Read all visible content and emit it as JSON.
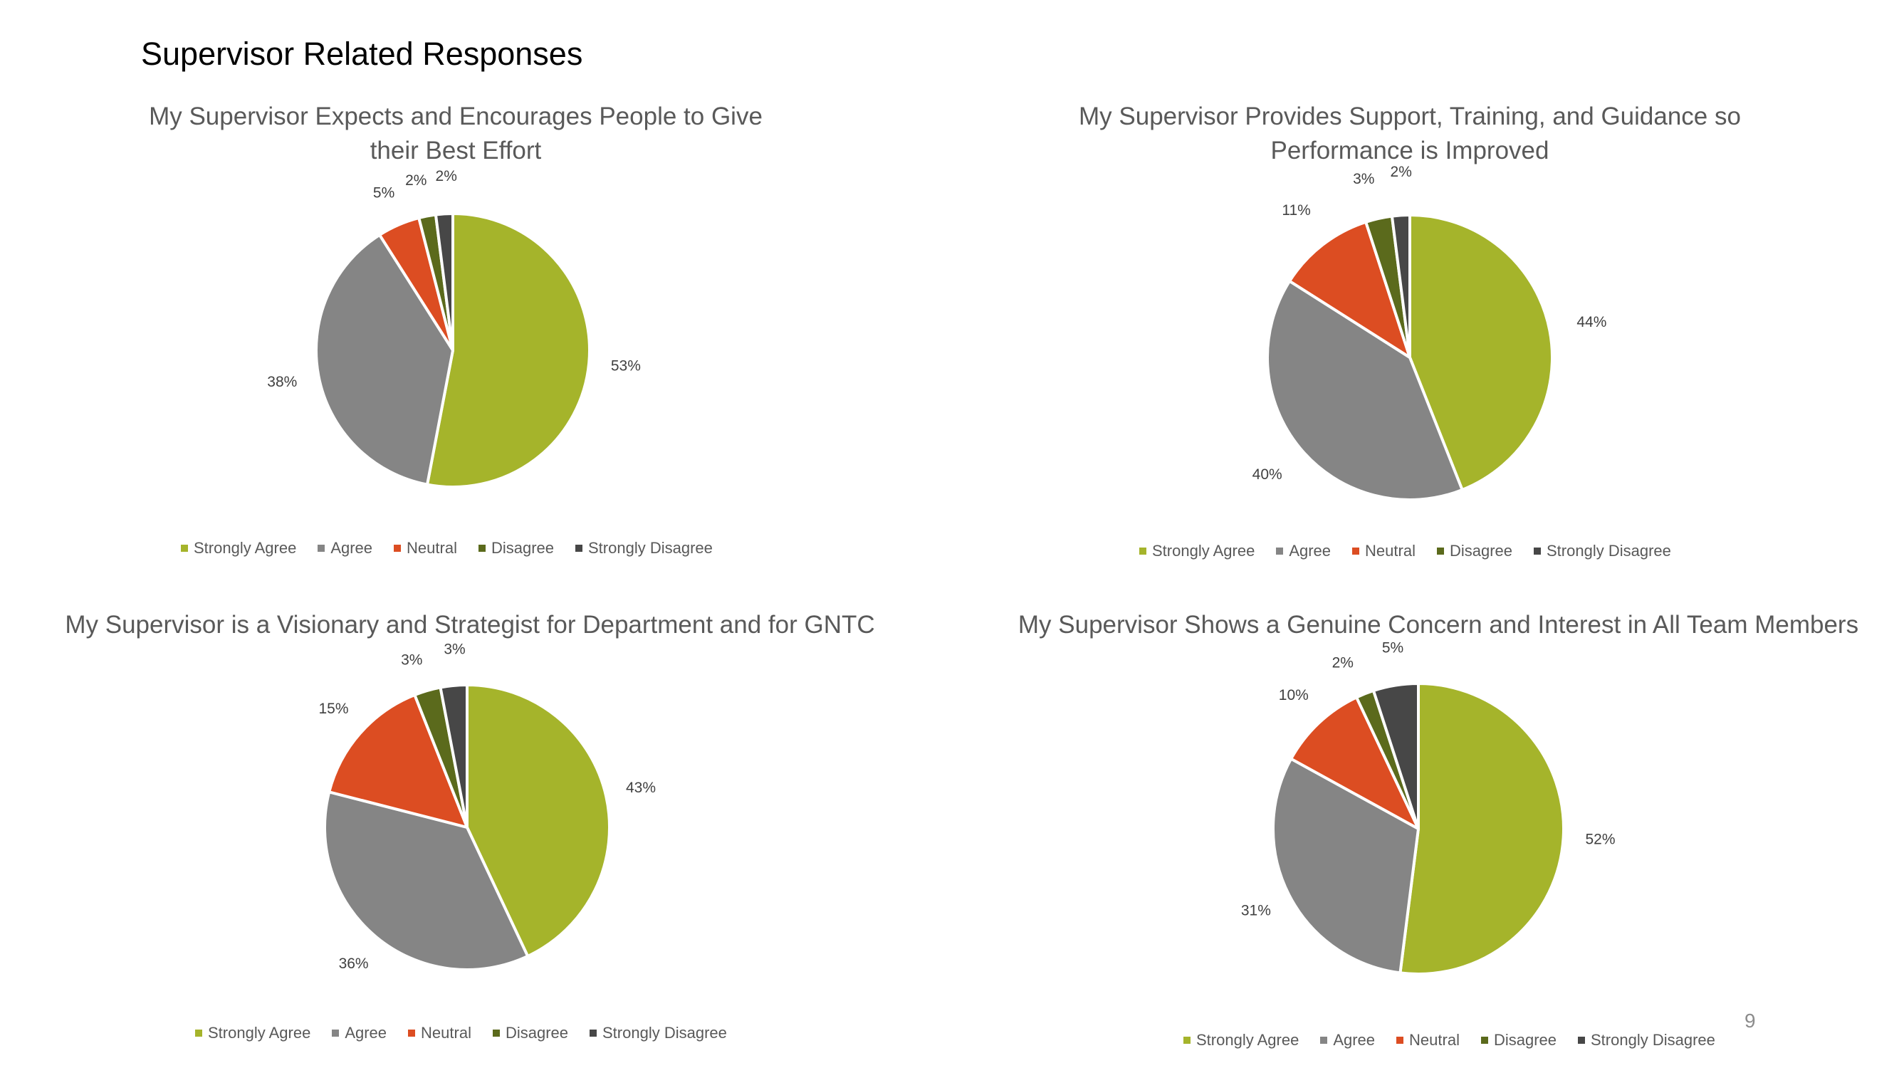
{
  "page_title": "Supervisor Related Responses",
  "page_number": "9",
  "colors": {
    "strongly_agree": "#a5b42b",
    "agree": "#858585",
    "neutral": "#dc4d22",
    "disagree": "#5b6a1c",
    "strongly_disagree": "#474747",
    "slice_border": "#ffffff",
    "title_text": "#595959",
    "label_text": "#404040"
  },
  "chart_data": [
    {
      "type": "pie",
      "title": "My Supervisor Expects and Encourages People to Give their Best Effort",
      "title_lines": [
        "My Supervisor Expects and Encourages People to Give",
        "their Best Effort"
      ],
      "categories": [
        "Strongly Agree",
        "Agree",
        "Neutral",
        "Disagree",
        "Strongly Disagree"
      ],
      "values": [
        53,
        38,
        5,
        2,
        2
      ],
      "labels": [
        "53%",
        "38%",
        "5%",
        "2%",
        "2%"
      ],
      "legend": "bottom"
    },
    {
      "type": "pie",
      "title": "My Supervisor Provides Support, Training, and Guidance so Performance is Improved",
      "title_lines": [
        "My Supervisor Provides Support, Training, and Guidance so",
        "Performance is Improved"
      ],
      "categories": [
        "Strongly Agree",
        "Agree",
        "Neutral",
        "Disagree",
        "Strongly Disagree"
      ],
      "values": [
        44,
        40,
        11,
        3,
        2
      ],
      "labels": [
        "44%",
        "40%",
        "11%",
        "3%",
        "2%"
      ],
      "legend": "bottom"
    },
    {
      "type": "pie",
      "title": "My Supervisor is a Visionary and Strategist for Department and for GNTC",
      "title_lines": [
        "My Supervisor is a Visionary and Strategist for Department and for GNTC"
      ],
      "categories": [
        "Strongly Agree",
        "Agree",
        "Neutral",
        "Disagree",
        "Strongly Disagree"
      ],
      "values": [
        43,
        36,
        15,
        3,
        3
      ],
      "labels": [
        "43%",
        "36%",
        "15%",
        "3%",
        "3%"
      ],
      "legend": "bottom"
    },
    {
      "type": "pie",
      "title": "My Supervisor Shows a Genuine Concern and Interest in All Team Members",
      "title_lines": [
        "My Supervisor Shows a Genuine Concern and Interest in All Team Members"
      ],
      "categories": [
        "Strongly Agree",
        "Agree",
        "Neutral",
        "Disagree",
        "Strongly Disagree"
      ],
      "values": [
        52,
        31,
        10,
        2,
        5
      ],
      "labels": [
        "52%",
        "31%",
        "10%",
        "2%",
        "5%"
      ],
      "legend": "bottom"
    }
  ]
}
